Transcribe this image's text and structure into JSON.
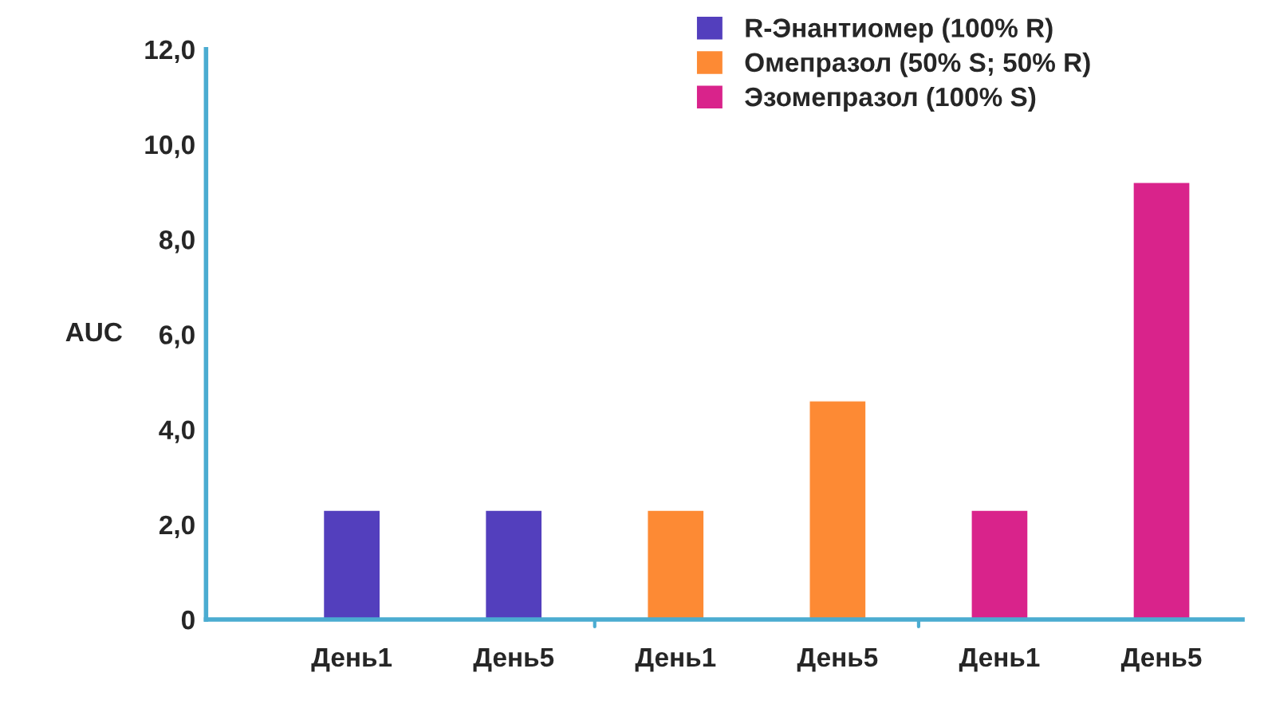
{
  "chart_data": {
    "type": "bar",
    "ylabel": "AUC",
    "categories": [
      "День1",
      "День5",
      "День1",
      "День5",
      "День1",
      "День5"
    ],
    "series": [
      {
        "name": "R-Энантиомер (100% R)",
        "color": "#533fbd",
        "values": [
          2.3,
          2.3,
          null,
          null,
          null,
          null
        ]
      },
      {
        "name": "Омепразол (50% S; 50% R)",
        "color": "#fd8a34",
        "values": [
          null,
          null,
          2.3,
          4.6,
          null,
          null
        ]
      },
      {
        "name": "Эзомепразол (100% S)",
        "color": "#d9238b",
        "values": [
          null,
          null,
          null,
          null,
          2.3,
          9.2
        ]
      }
    ],
    "ylim": [
      0,
      12
    ],
    "yticks": [
      {
        "value": 0,
        "label": "0"
      },
      {
        "value": 2,
        "label": "2,0"
      },
      {
        "value": 4,
        "label": "4,0"
      },
      {
        "value": 6,
        "label": "6,0"
      },
      {
        "value": 8,
        "label": "8,0"
      },
      {
        "value": 10,
        "label": "10,0"
      },
      {
        "value": 12,
        "label": "12,0"
      }
    ],
    "grid": false,
    "legend": "top"
  }
}
